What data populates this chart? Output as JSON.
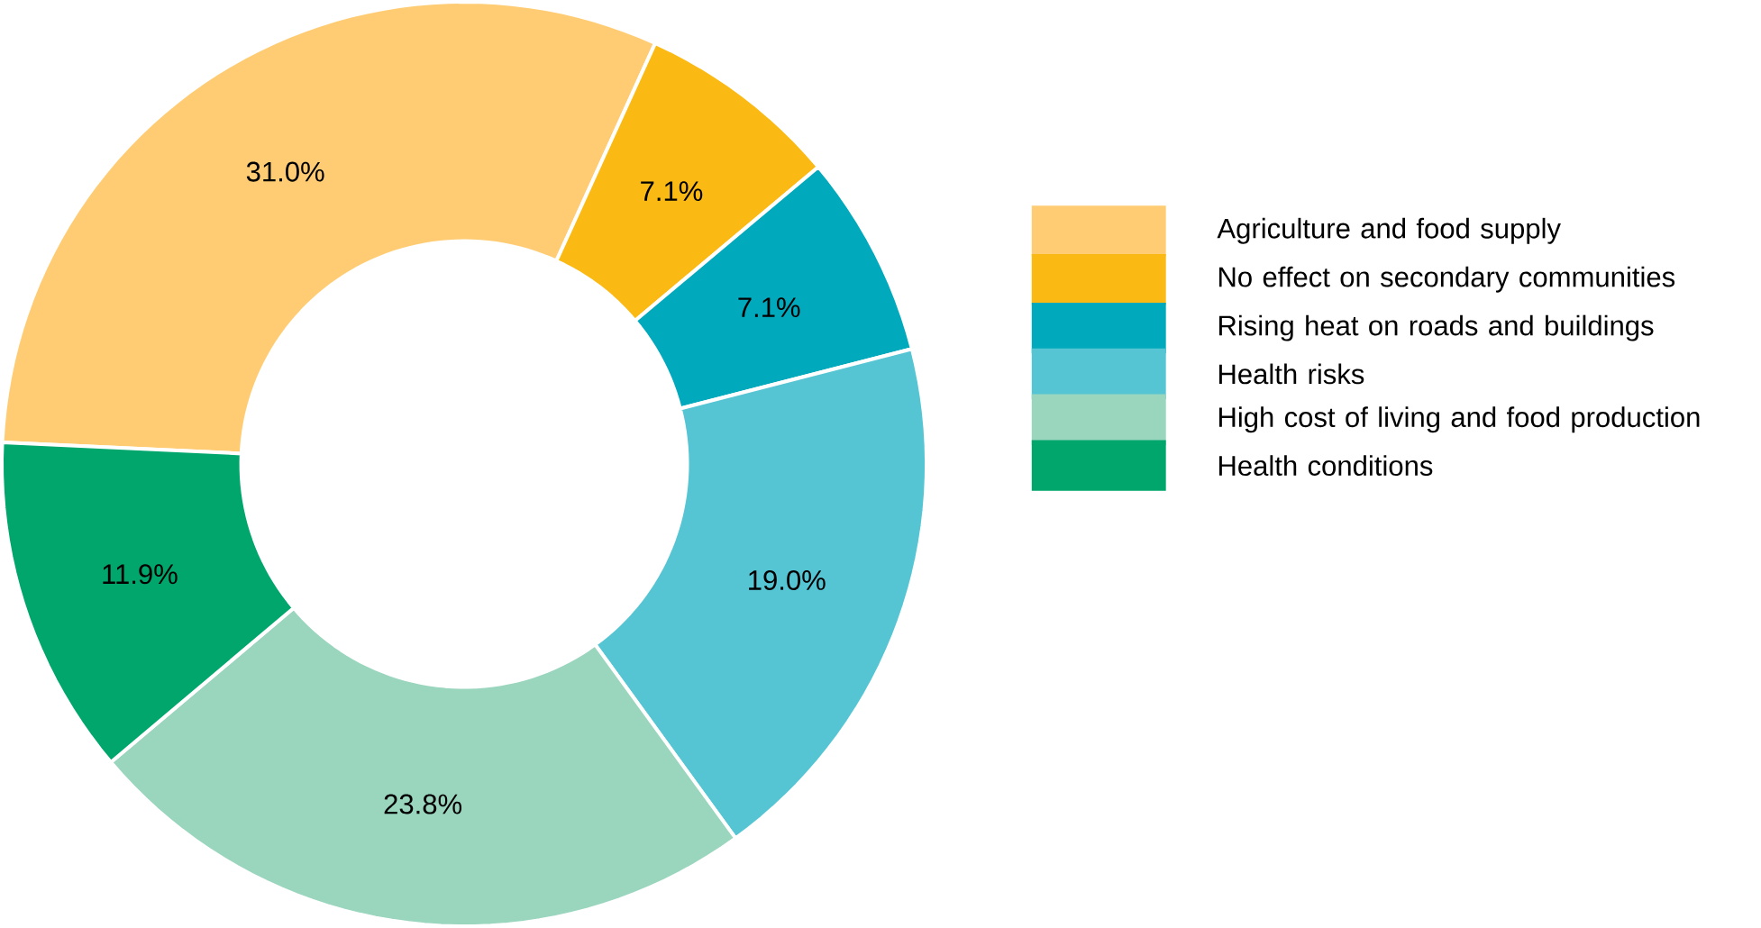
{
  "chart_data": {
    "type": "donut",
    "categories": [
      "Agriculture and food supply",
      "No effect on secondary communities",
      "Rising heat on roads and buildings",
      "Health risks",
      "High cost of living and food production",
      "Health conditions"
    ],
    "values": [
      31.0,
      7.1,
      7.1,
      19.0,
      23.8,
      11.9
    ],
    "value_labels": [
      "31.0%",
      "7.1%",
      "7.1%",
      "19.0%",
      "23.8%",
      "11.9%"
    ],
    "colors": [
      "#ffcc73",
      "#fbb913",
      "#00a9bc",
      "#55c5d4",
      "#9ad5be",
      "#00a66c"
    ],
    "legend": "right"
  }
}
